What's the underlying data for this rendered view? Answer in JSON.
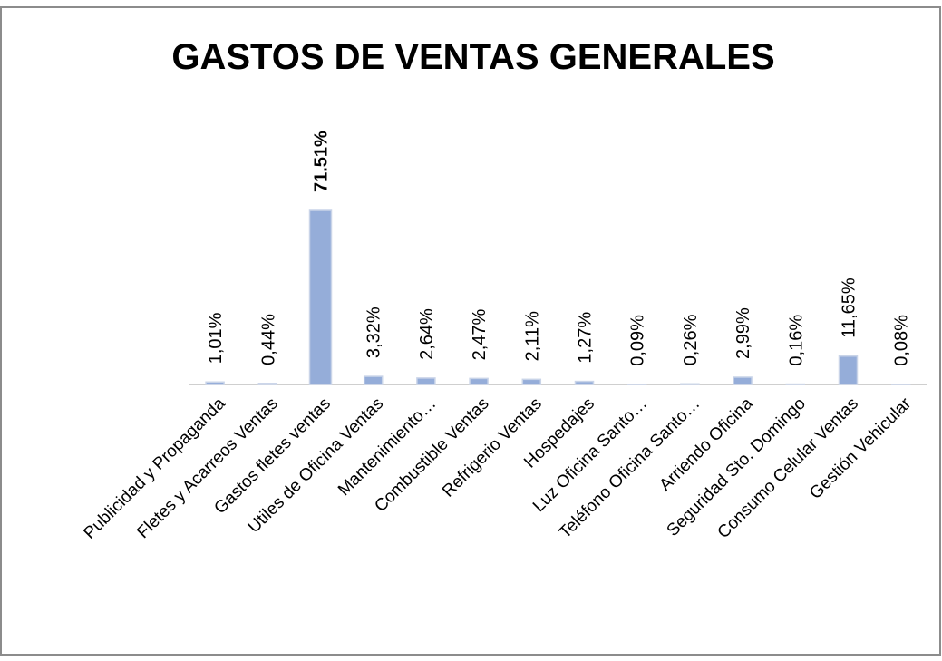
{
  "chart_data": {
    "type": "bar",
    "title": "GASTOS DE VENTAS GENERALES",
    "categories": [
      "Publicidad y Propaganda",
      "Fletes y Acarreos Ventas",
      "Gastos fletes ventas",
      "Utiles de Oficina Ventas",
      "Mantenimiento…",
      "Combustible Ventas",
      "Refrigerio Ventas",
      "Hospedajes",
      "Luz Oficina Santo…",
      "Teléfono Oficina Santo…",
      "Arriendo Oficina",
      "Seguridad Sto. Domingo",
      "Consumo Celular Ventas",
      "Gestión Vehicular"
    ],
    "values": [
      1.01,
      0.44,
      71.51,
      3.32,
      2.64,
      2.47,
      2.11,
      1.27,
      0.09,
      0.26,
      2.99,
      0.16,
      11.65,
      0.08
    ],
    "value_labels": [
      "1,01%",
      "0,44%",
      "71.51%",
      "3,32%",
      "2,64%",
      "2,47%",
      "2,11%",
      "1,27%",
      "0,09%",
      "0,26%",
      "2,99%",
      "0,16%",
      "11,65%",
      "0,08%"
    ],
    "color": "#95add9"
  }
}
